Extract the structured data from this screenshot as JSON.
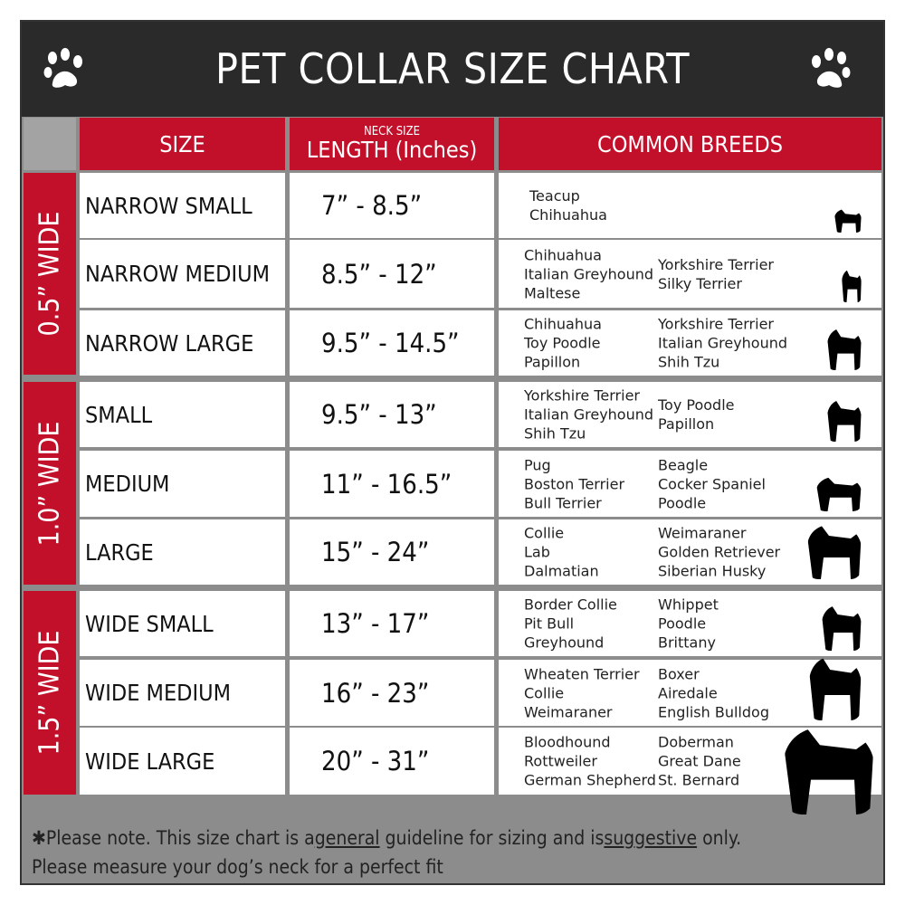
{
  "title": "PET COLLAR SIZE CHART",
  "icons": {
    "left": "paw-print-icon",
    "right": "paw-print-icon"
  },
  "colors": {
    "header_bg": "#2a2a2a",
    "accent_red": "#c2102b",
    "grid_gray": "#8c8c8c"
  },
  "columns": {
    "size": "SIZE",
    "length_small": "NECK SIZE",
    "length": "LENGTH (Inches)",
    "breeds": "COMMON BREEDS"
  },
  "groups": [
    {
      "label": "0.5” WIDE"
    },
    {
      "label": "1.0” WIDE"
    },
    {
      "label": "1.5” WIDE"
    }
  ],
  "rows": [
    {
      "size": "NARROW SMALL",
      "length": "7” - 8.5”",
      "breeds_a": [
        "Teacup",
        "Chihuahua"
      ],
      "breeds_b": [],
      "icon": "yorkie-silhouette-icon"
    },
    {
      "size": "NARROW MEDIUM",
      "length": "8.5” - 12”",
      "breeds_a": [
        "Chihuahua",
        "Italian Greyhound",
        "Maltese"
      ],
      "breeds_b": [
        "Yorkshire Terrier",
        "Silky Terrier"
      ],
      "icon": "chihuahua-silhouette-icon"
    },
    {
      "size": "NARROW LARGE",
      "length": "9.5” - 14.5”",
      "breeds_a": [
        "Chihuahua",
        "Toy Poodle",
        "Papillon"
      ],
      "breeds_b": [
        "Yorkshire Terrier",
        "Italian Greyhound",
        "Shih Tzu"
      ],
      "icon": "pomeranian-silhouette-icon"
    },
    {
      "size": "SMALL",
      "length": "9.5” - 13”",
      "breeds_a": [
        "Yorkshire Terrier",
        "Italian Greyhound",
        "Shih Tzu"
      ],
      "breeds_b": [
        "Toy Poodle",
        "Papillon"
      ],
      "icon": "pomeranian-silhouette-icon"
    },
    {
      "size": "MEDIUM",
      "length": "11” - 16.5”",
      "breeds_a": [
        "Pug",
        "Boston Terrier",
        "Bull Terrier"
      ],
      "breeds_b": [
        "Beagle",
        "Cocker Spaniel",
        "Poodle"
      ],
      "icon": "dachshund-silhouette-icon"
    },
    {
      "size": "LARGE",
      "length": "15” - 24”",
      "breeds_a": [
        "Collie",
        "Lab",
        "Dalmatian"
      ],
      "breeds_b": [
        "Weimaraner",
        "Golden Retriever",
        "Siberian Husky"
      ],
      "icon": "shepherd-silhouette-icon"
    },
    {
      "size": "WIDE SMALL",
      "length": "13” - 17”",
      "breeds_a": [
        "Border Collie",
        "Pit Bull",
        "Greyhound"
      ],
      "breeds_b": [
        "Whippet",
        "Poodle",
        "Brittany"
      ],
      "icon": "bulldog-silhouette-icon"
    },
    {
      "size": "WIDE MEDIUM",
      "length": "16” - 23”",
      "breeds_a": [
        "Wheaten Terrier",
        "Collie",
        "Weimaraner"
      ],
      "breeds_b": [
        "Boxer",
        "Airedale",
        "English Bulldog"
      ],
      "icon": "pitbull-silhouette-icon"
    },
    {
      "size": "WIDE LARGE",
      "length": "20” - 31”",
      "breeds_a": [
        "Bloodhound",
        "Rottweiler",
        "German Shepherd"
      ],
      "breeds_b": [
        "Doberman",
        "Great Dane",
        "St. Bernard"
      ],
      "icon": "doberman-silhouette-icon"
    }
  ],
  "footer": {
    "p1": "✱Please note. This size chart is a",
    "u1": "general",
    "p2": " guideline for sizing and is",
    "u2": "suggestive",
    "p3": " only.",
    "line2": "Please measure your dog’s neck for a perfect fit"
  }
}
